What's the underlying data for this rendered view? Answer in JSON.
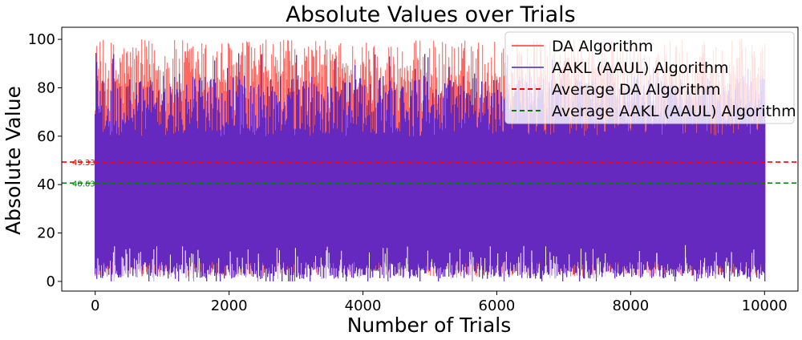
{
  "chart_data": {
    "type": "line",
    "title": "Absolute Values over Trials",
    "xlabel": "Number of Trials",
    "ylabel": "Absolute Value",
    "xlim": [
      -500,
      10500
    ],
    "ylim": [
      -4,
      105
    ],
    "xticks": [
      0,
      2000,
      4000,
      6000,
      8000,
      10000
    ],
    "yticks": [
      0,
      20,
      40,
      60,
      80,
      100
    ],
    "legend_position": "top-right",
    "series": [
      {
        "name": "DA Algorithm",
        "color": "#ff6961",
        "style": "solid",
        "n_points": 10000,
        "x_range": [
          0,
          10000
        ],
        "y_range": [
          0,
          100
        ],
        "typical_peak_band": [
          70,
          100
        ],
        "mean": 49.33
      },
      {
        "name": "AAKL (AAUL) Algorithm",
        "color": "#6a5acd",
        "style": "solid",
        "n_points": 10000,
        "x_range": [
          0,
          10000
        ],
        "y_range": [
          0,
          100
        ],
        "typical_peak_band": [
          60,
          85
        ],
        "mean": 40.63
      }
    ],
    "reference_lines": [
      {
        "name": "Average DA Algorithm",
        "y": 49.33,
        "label": "49.33",
        "color": "#ff0000",
        "style": "dashed"
      },
      {
        "name": "Average AAKL (AAUL) Algorithm",
        "y": 40.63,
        "label": "40.63",
        "color": "#008000",
        "style": "dashed"
      }
    ],
    "overlap_color": "#6529c0"
  }
}
